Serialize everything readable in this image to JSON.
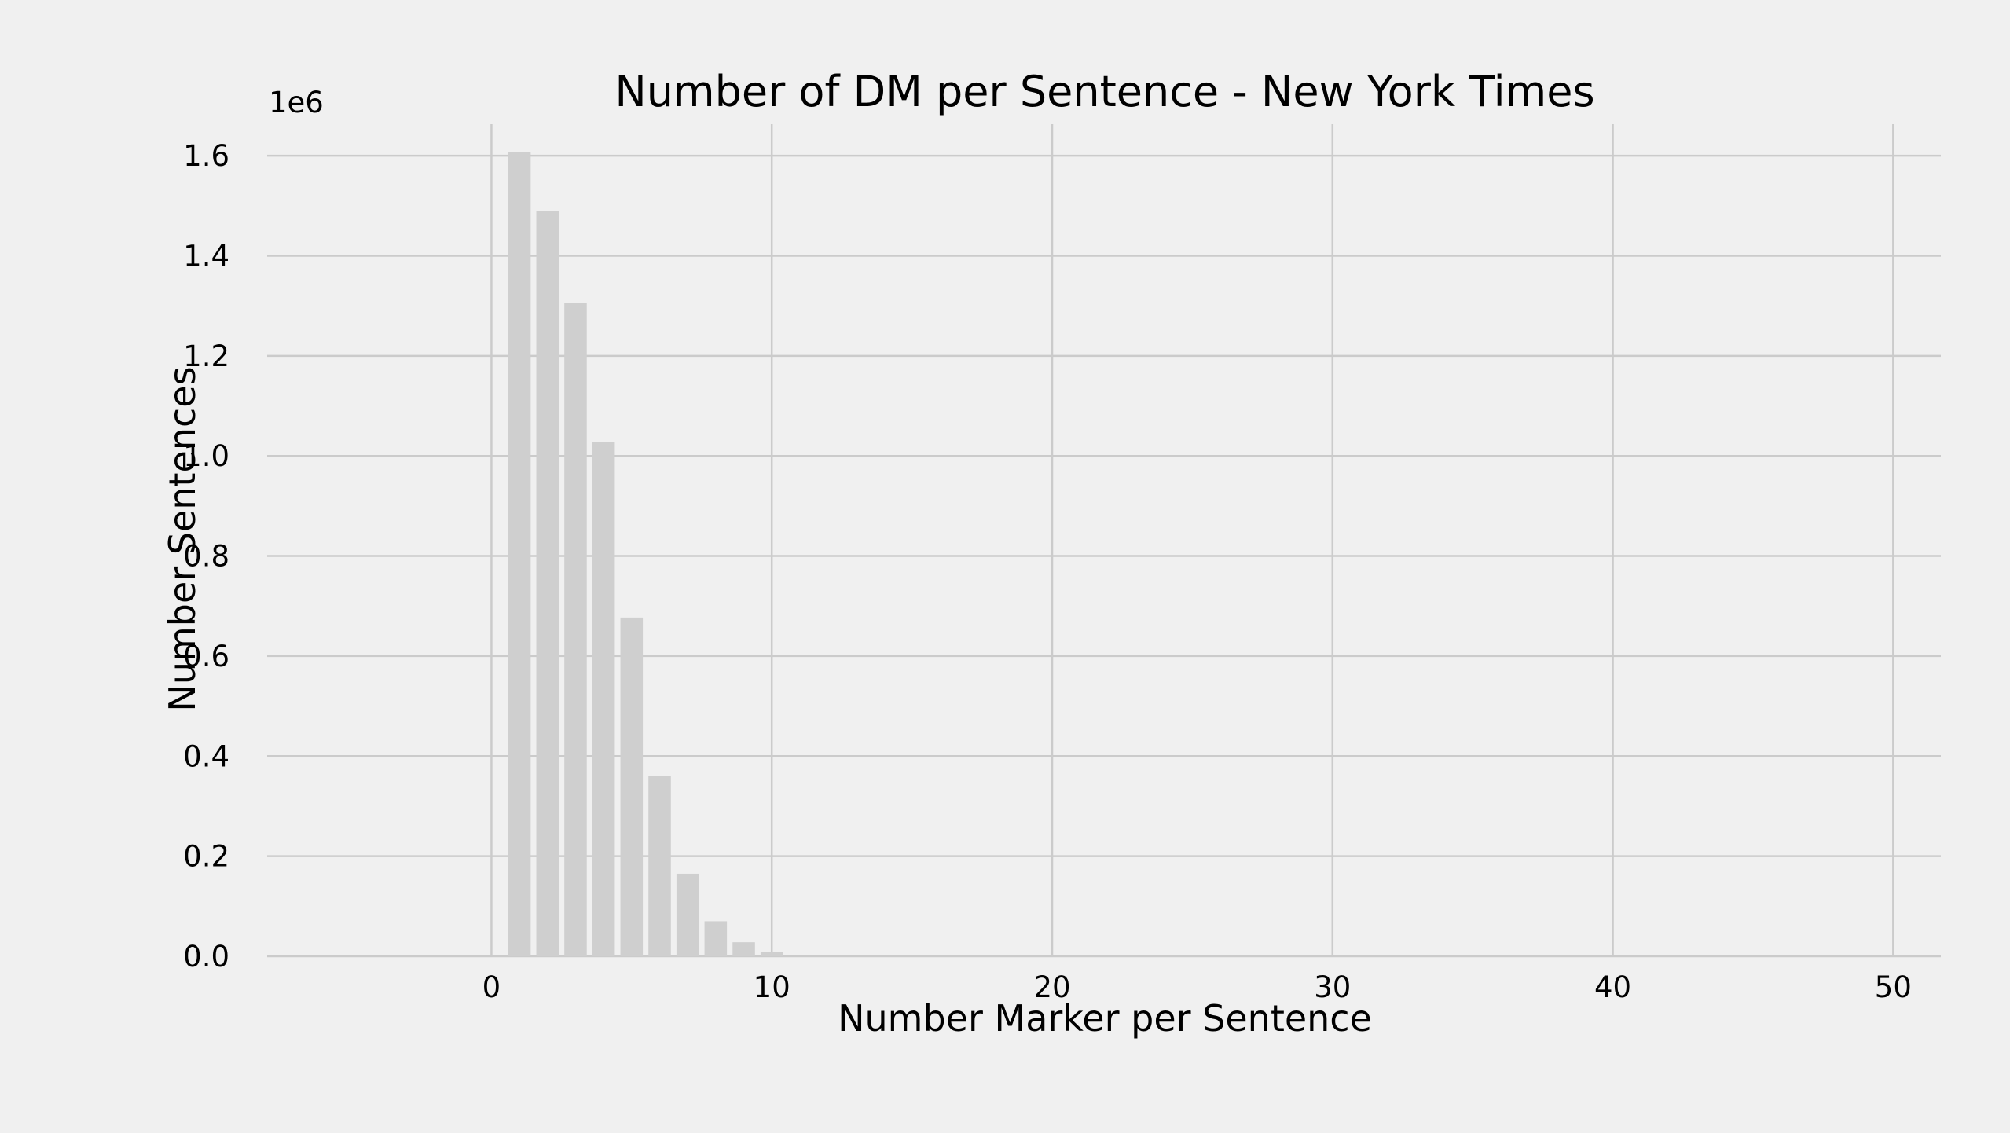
{
  "chart_data": {
    "type": "bar",
    "title": "Number of DM per Sentence - New York Times",
    "xlabel": "Number Marker per Sentence",
    "ylabel": "Number Sentences",
    "y_offset_label": "1e6",
    "x": [
      1,
      2,
      3,
      4,
      5,
      6,
      7,
      8,
      9,
      10
    ],
    "values": [
      1608000,
      1490000,
      1305000,
      1027000,
      677000,
      360000,
      165000,
      70000,
      28000,
      9000
    ],
    "xlim": [
      -8,
      51.7
    ],
    "ylim": [
      0,
      1663000
    ],
    "xticks": [
      0,
      10,
      20,
      30,
      40,
      50
    ],
    "xtick_labels": [
      "0",
      "10",
      "20",
      "30",
      "40",
      "50"
    ],
    "yticks": [
      0,
      200000,
      400000,
      600000,
      800000,
      1000000,
      1200000,
      1400000,
      1600000
    ],
    "ytick_labels": [
      "0.0",
      "0.2",
      "0.4",
      "0.6",
      "0.8",
      "1.0",
      "1.2",
      "1.4",
      "1.6"
    ],
    "grid": true,
    "colors": {
      "background": "#f0f0f0",
      "bar": "#cfcfcf",
      "grid": "#cbcbcb",
      "text": "#000000"
    }
  }
}
